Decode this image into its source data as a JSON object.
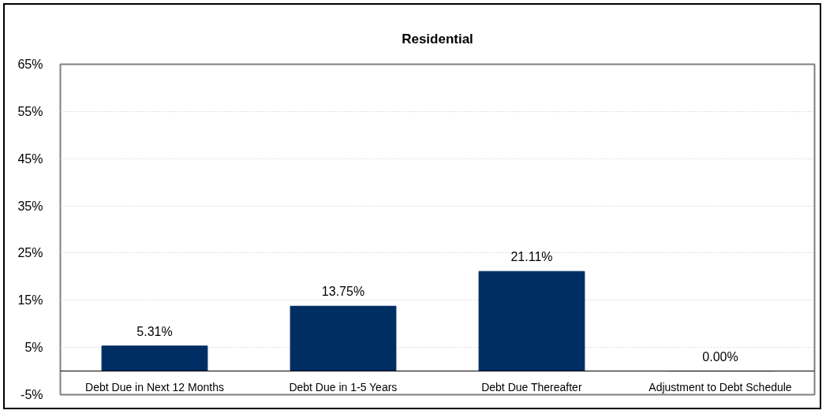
{
  "chart_data": {
    "type": "bar",
    "title": "Residential",
    "categories": [
      "Debt Due in Next 12 Months",
      "Debt Due in 1-5 Years",
      "Debt Due Thereafter",
      "Adjustment to Debt Schedule"
    ],
    "values": [
      5.31,
      13.75,
      21.11,
      0.0
    ],
    "color": "#002d62",
    "value_labels": [
      "5.31%",
      "13.75%",
      "21.11%",
      "0.00%"
    ],
    "ylim": [
      -5,
      65
    ],
    "yticks": [
      {
        "value": -5,
        "label": "-5%"
      },
      {
        "value": 5,
        "label": "5%"
      },
      {
        "value": 15,
        "label": "15%"
      },
      {
        "value": 25,
        "label": "25%"
      },
      {
        "value": 35,
        "label": "35%"
      },
      {
        "value": 45,
        "label": "45%"
      },
      {
        "value": 55,
        "label": "55%"
      },
      {
        "value": 65,
        "label": "65%"
      }
    ],
    "grid": "y"
  }
}
